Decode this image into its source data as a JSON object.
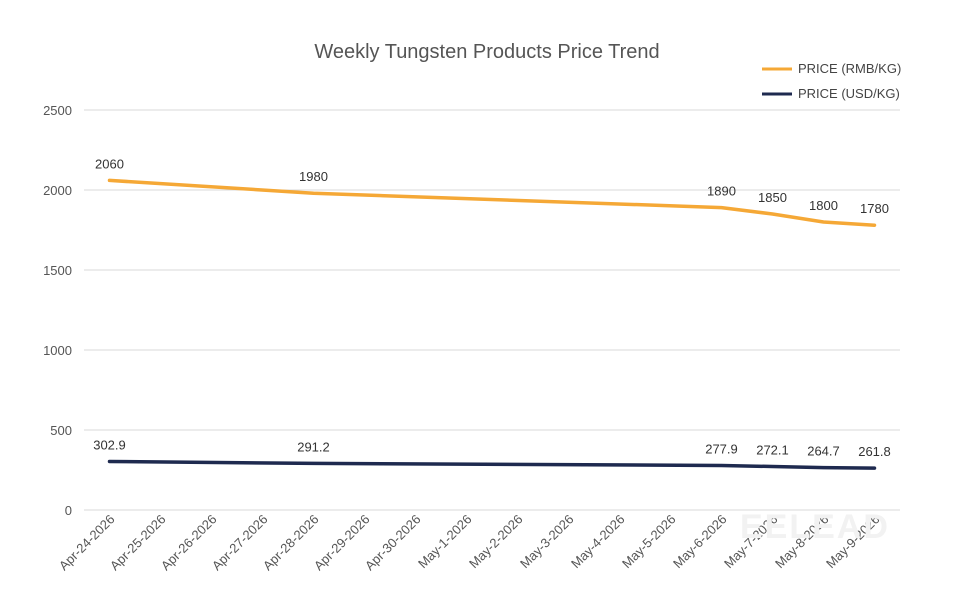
{
  "chart_data": {
    "type": "line",
    "title": "Weekly Tungsten Products Price Trend",
    "xlabel": "",
    "ylabel": "",
    "categories": [
      "Apr-24-2026",
      "Apr-25-2026",
      "Apr-26-2026",
      "Apr-27-2026",
      "Apr-28-2026",
      "Apr-29-2026",
      "Apr-30-2026",
      "May-1-2026",
      "May-2-2026",
      "May-3-2026",
      "May-4-2026",
      "May-5-2026",
      "May-6-2026",
      "May-7-2026",
      "May-8-2026",
      "May-9-2026"
    ],
    "ylim": [
      0,
      2500
    ],
    "yticks": [
      0,
      500,
      1000,
      1500,
      2000,
      2500
    ],
    "grid": true,
    "legend_position": "top-right",
    "series": [
      {
        "name": "PRICE (RMB/KG)",
        "color": "#f5a836",
        "points": [
          [
            0,
            2060
          ],
          [
            4,
            1980
          ],
          [
            12,
            1890
          ],
          [
            13,
            1850
          ],
          [
            14,
            1800
          ],
          [
            15,
            1780
          ]
        ],
        "labels": [
          "2060",
          "1980",
          "1890",
          "1850",
          "1800",
          "1780"
        ]
      },
      {
        "name": "PRICE (USD/KG)",
        "color": "#1e2a4f",
        "points": [
          [
            0,
            302.9
          ],
          [
            4,
            291.2
          ],
          [
            12,
            277.9
          ],
          [
            13,
            272.1
          ],
          [
            14,
            264.7
          ],
          [
            15,
            261.8
          ]
        ],
        "labels": [
          "302.9",
          "291.2",
          "277.9",
          "272.1",
          "264.7",
          "261.8"
        ]
      }
    ],
    "watermark": "EELEAD"
  }
}
